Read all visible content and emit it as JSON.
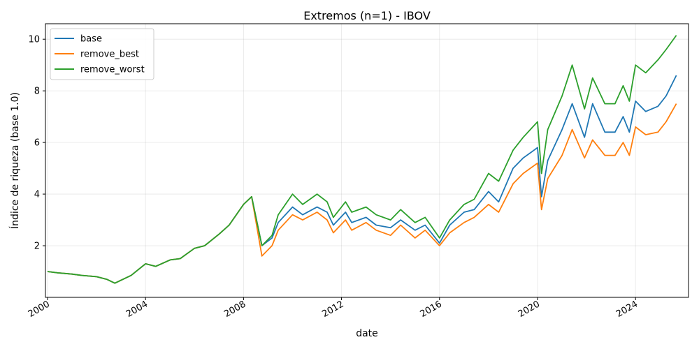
{
  "chart_data": {
    "type": "line",
    "title": "Extremos (n=1) - IBOV",
    "xlabel": "date",
    "ylabel": "Índice de riqueza (base 1.0)",
    "xlim": [
      "1999-12-01",
      "2026-03-01"
    ],
    "ylim": [
      0.0,
      10.6
    ],
    "x_ticks": [
      "2000",
      "2004",
      "2008",
      "2012",
      "2016",
      "2020",
      "2024"
    ],
    "y_ticks": [
      2,
      4,
      6,
      8,
      10
    ],
    "grid": true,
    "legend_position": "upper-left",
    "colors": {
      "base": "#1f77b4",
      "remove_best": "#ff7f0e",
      "remove_worst": "#2ca02c"
    },
    "series": [
      {
        "name": "base",
        "x": [
          "2000-01",
          "2000-06",
          "2001-01",
          "2001-06",
          "2002-01",
          "2002-06",
          "2002-10",
          "2003-06",
          "2004-01",
          "2004-06",
          "2005-01",
          "2005-06",
          "2006-01",
          "2006-06",
          "2007-01",
          "2007-06",
          "2008-01",
          "2008-05",
          "2008-10",
          "2009-03",
          "2009-06",
          "2010-01",
          "2010-06",
          "2011-01",
          "2011-06",
          "2011-09",
          "2012-03",
          "2012-06",
          "2013-01",
          "2013-06",
          "2014-01",
          "2014-06",
          "2015-01",
          "2015-06",
          "2016-01",
          "2016-06",
          "2017-01",
          "2017-06",
          "2018-01",
          "2018-06",
          "2019-01",
          "2019-06",
          "2020-01",
          "2020-03",
          "2020-06",
          "2021-01",
          "2021-06",
          "2021-12",
          "2022-04",
          "2022-10",
          "2023-03",
          "2023-07",
          "2023-10",
          "2024-01",
          "2024-06",
          "2024-12",
          "2025-04",
          "2025-09"
        ],
        "values": [
          1.0,
          0.95,
          0.9,
          0.85,
          0.8,
          0.7,
          0.55,
          0.85,
          1.3,
          1.2,
          1.45,
          1.5,
          1.9,
          2.0,
          2.45,
          2.8,
          3.6,
          3.9,
          2.0,
          2.3,
          2.9,
          3.5,
          3.2,
          3.5,
          3.3,
          2.8,
          3.3,
          2.9,
          3.1,
          2.8,
          2.7,
          3.0,
          2.6,
          2.8,
          2.1,
          2.8,
          3.3,
          3.4,
          4.1,
          3.7,
          5.0,
          5.4,
          5.8,
          3.9,
          5.3,
          6.5,
          7.5,
          6.2,
          7.5,
          6.4,
          6.4,
          7.0,
          6.4,
          7.6,
          7.2,
          7.4,
          7.8,
          8.6
        ]
      },
      {
        "name": "remove_best",
        "x": [
          "2000-01",
          "2000-06",
          "2001-01",
          "2001-06",
          "2002-01",
          "2002-06",
          "2002-10",
          "2003-06",
          "2004-01",
          "2004-06",
          "2005-01",
          "2005-06",
          "2006-01",
          "2006-06",
          "2007-01",
          "2007-06",
          "2008-01",
          "2008-05",
          "2008-10",
          "2009-03",
          "2009-06",
          "2010-01",
          "2010-06",
          "2011-01",
          "2011-06",
          "2011-09",
          "2012-03",
          "2012-06",
          "2013-01",
          "2013-06",
          "2014-01",
          "2014-06",
          "2015-01",
          "2015-06",
          "2016-01",
          "2016-06",
          "2017-01",
          "2017-06",
          "2018-01",
          "2018-06",
          "2019-01",
          "2019-06",
          "2020-01",
          "2020-03",
          "2020-06",
          "2021-01",
          "2021-06",
          "2021-12",
          "2022-04",
          "2022-10",
          "2023-03",
          "2023-07",
          "2023-10",
          "2024-01",
          "2024-06",
          "2024-12",
          "2025-04",
          "2025-09"
        ],
        "values": [
          1.0,
          0.95,
          0.9,
          0.85,
          0.8,
          0.7,
          0.55,
          0.85,
          1.3,
          1.2,
          1.45,
          1.5,
          1.9,
          2.0,
          2.45,
          2.8,
          3.6,
          3.9,
          1.6,
          2.0,
          2.6,
          3.2,
          3.0,
          3.3,
          3.0,
          2.5,
          3.0,
          2.6,
          2.9,
          2.6,
          2.4,
          2.8,
          2.3,
          2.6,
          2.0,
          2.5,
          2.9,
          3.1,
          3.6,
          3.3,
          4.4,
          4.8,
          5.2,
          3.4,
          4.6,
          5.5,
          6.5,
          5.4,
          6.1,
          5.5,
          5.5,
          6.0,
          5.5,
          6.6,
          6.3,
          6.4,
          6.8,
          7.5
        ]
      },
      {
        "name": "remove_worst",
        "x": [
          "2000-01",
          "2000-06",
          "2001-01",
          "2001-06",
          "2002-01",
          "2002-06",
          "2002-10",
          "2003-06",
          "2004-01",
          "2004-06",
          "2005-01",
          "2005-06",
          "2006-01",
          "2006-06",
          "2007-01",
          "2007-06",
          "2008-01",
          "2008-05",
          "2008-10",
          "2009-03",
          "2009-06",
          "2010-01",
          "2010-06",
          "2011-01",
          "2011-06",
          "2011-09",
          "2012-03",
          "2012-06",
          "2013-01",
          "2013-06",
          "2014-01",
          "2014-06",
          "2015-01",
          "2015-06",
          "2016-01",
          "2016-06",
          "2017-01",
          "2017-06",
          "2018-01",
          "2018-06",
          "2019-01",
          "2019-06",
          "2020-01",
          "2020-03",
          "2020-06",
          "2021-01",
          "2021-06",
          "2021-12",
          "2022-04",
          "2022-10",
          "2023-03",
          "2023-07",
          "2023-10",
          "2024-01",
          "2024-06",
          "2024-12",
          "2025-04",
          "2025-09"
        ],
        "values": [
          1.0,
          0.95,
          0.9,
          0.85,
          0.8,
          0.7,
          0.55,
          0.85,
          1.3,
          1.2,
          1.45,
          1.5,
          1.9,
          2.0,
          2.45,
          2.8,
          3.6,
          3.9,
          2.0,
          2.4,
          3.2,
          4.0,
          3.6,
          4.0,
          3.7,
          3.1,
          3.7,
          3.3,
          3.5,
          3.2,
          3.0,
          3.4,
          2.9,
          3.1,
          2.3,
          3.0,
          3.6,
          3.8,
          4.8,
          4.5,
          5.7,
          6.2,
          6.8,
          4.8,
          6.5,
          7.8,
          9.0,
          7.3,
          8.5,
          7.5,
          7.5,
          8.2,
          7.6,
          9.0,
          8.7,
          9.2,
          9.6,
          10.15
        ]
      }
    ]
  }
}
